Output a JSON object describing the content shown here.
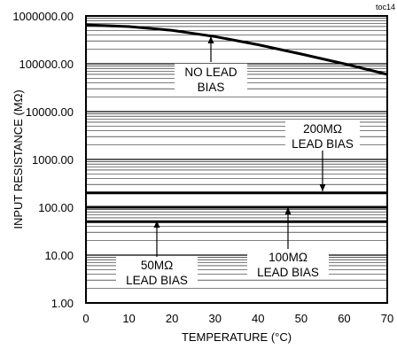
{
  "chart_data": {
    "type": "line",
    "corner_label": "toc14",
    "xlabel": "TEMPERATURE (°C)",
    "ylabel": "INPUT RESISTANCE (MΩ)",
    "x_range": [
      0,
      70
    ],
    "y_range": [
      1,
      1000000
    ],
    "y_scale": "log",
    "grid": true,
    "x_ticks": [
      "0",
      "10",
      "20",
      "30",
      "40",
      "50",
      "60",
      "70"
    ],
    "y_ticks": [
      "1000000.00",
      "100000.00",
      "10000.00",
      "1000.00",
      "100.00",
      "10.00",
      "1.00"
    ],
    "series": [
      {
        "name": "NO LEAD BIAS",
        "x": [
          0,
          10,
          20,
          30,
          40,
          50,
          60,
          70
        ],
        "y": [
          650000,
          600000,
          500000,
          370000,
          250000,
          160000,
          100000,
          60000
        ]
      },
      {
        "name": "200MΩ LEAD BIAS",
        "x": [
          0,
          70
        ],
        "y": [
          200,
          200
        ]
      },
      {
        "name": "100MΩ LEAD BIAS",
        "x": [
          0,
          70
        ],
        "y": [
          100,
          100
        ]
      },
      {
        "name": "50MΩ LEAD BIAS",
        "x": [
          0,
          70
        ],
        "y": [
          50,
          50
        ]
      }
    ],
    "annotations": [
      {
        "lines": [
          "NO LEAD",
          "BIAS"
        ],
        "series": 0
      },
      {
        "lines": [
          "200MΩ",
          "LEAD BIAS"
        ],
        "series": 1
      },
      {
        "lines": [
          "100MΩ",
          "LEAD BIAS"
        ],
        "series": 2
      },
      {
        "lines": [
          "50MΩ",
          "LEAD BIAS"
        ],
        "series": 3
      }
    ]
  }
}
